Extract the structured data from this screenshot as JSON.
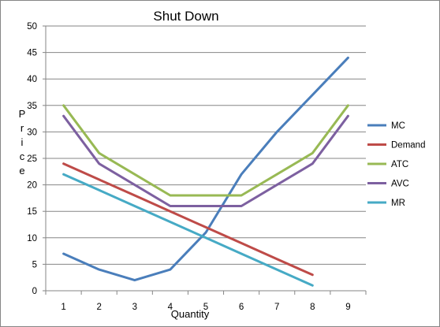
{
  "chart_data": {
    "type": "line",
    "title": "Shut Down",
    "xlabel": "Quantity",
    "ylabel": "Price",
    "categories": [
      "1",
      "2",
      "3",
      "4",
      "5",
      "6",
      "7",
      "8",
      "9"
    ],
    "ylim": [
      0,
      50
    ],
    "yticks": [
      "0",
      "5",
      "10",
      "15",
      "20",
      "25",
      "30",
      "35",
      "40",
      "45",
      "50"
    ],
    "grid": "horizontal",
    "legend": "right",
    "series": [
      {
        "name": "MC",
        "color": "#4a7ebb",
        "values": [
          7,
          4,
          2,
          4,
          11,
          22,
          30,
          37,
          44
        ]
      },
      {
        "name": "Demand",
        "color": "#be4b48",
        "values": [
          24,
          21,
          18,
          15,
          12,
          9,
          6,
          3,
          null
        ]
      },
      {
        "name": "ATC",
        "color": "#98b954",
        "values": [
          35,
          26,
          22,
          18,
          18,
          18,
          22,
          26,
          35
        ]
      },
      {
        "name": "AVC",
        "color": "#7d60a0",
        "values": [
          33,
          24,
          20,
          16,
          16,
          16,
          20,
          24,
          33
        ]
      },
      {
        "name": "MR",
        "color": "#46aac5",
        "values": [
          22,
          19,
          16,
          13,
          10,
          7,
          4,
          1,
          null
        ]
      }
    ]
  }
}
